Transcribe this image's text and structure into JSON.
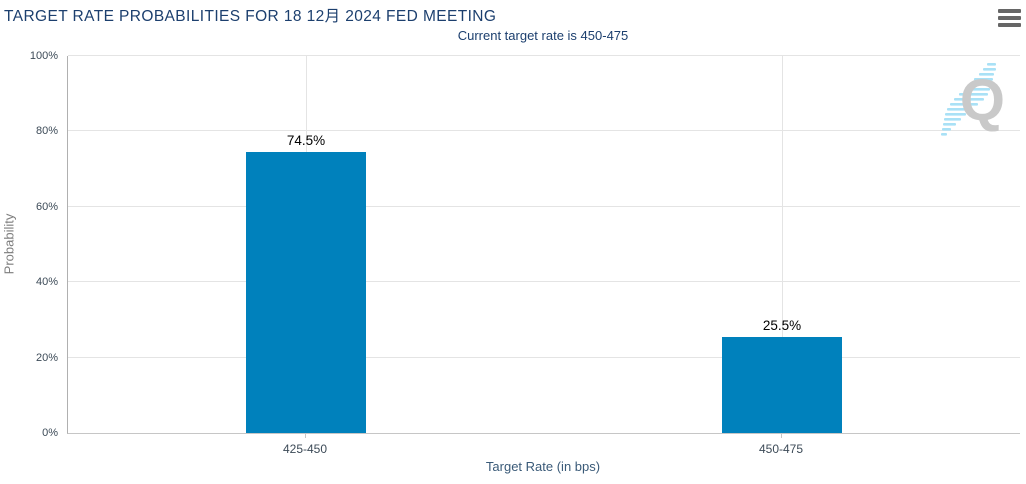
{
  "header": {
    "title": "TARGET RATE PROBABILITIES FOR 18 12月 2024 FED MEETING",
    "subtitle": "Current target rate is 450-475",
    "menu_icon": "hamburger-icon"
  },
  "chart_data": {
    "type": "bar",
    "title": "TARGET RATE PROBABILITIES FOR 18 12月 2024 FED MEETING",
    "subtitle": "Current target rate is 450-475",
    "categories": [
      "425-450",
      "450-475"
    ],
    "values": [
      74.5,
      25.5
    ],
    "value_labels": [
      "74.5%",
      "25.5%"
    ],
    "xlabel": "Target Rate (in bps)",
    "ylabel": "Probability",
    "ylim": [
      0,
      100
    ],
    "yticks": [
      0,
      20,
      40,
      60,
      80,
      100
    ],
    "ytick_suffix": "%",
    "grid": true,
    "legend": false,
    "bar_color": "#0081BC"
  },
  "watermark": {
    "letter": "Q"
  },
  "colors": {
    "title_text": "#1C3F6E",
    "axis_tick_text": "#3C4A57",
    "xlabel_text": "#3A5A78",
    "ylabel_text": "#7D7D7D",
    "bar": "#0081BC",
    "bar_value_text": "#000000",
    "gridline": "#E4E4E4",
    "axis_line": "#B0B0B0",
    "menu_icon": "#666666",
    "watermark_gray": "#C9C9C9",
    "watermark_blue": "#A9E1F6"
  }
}
